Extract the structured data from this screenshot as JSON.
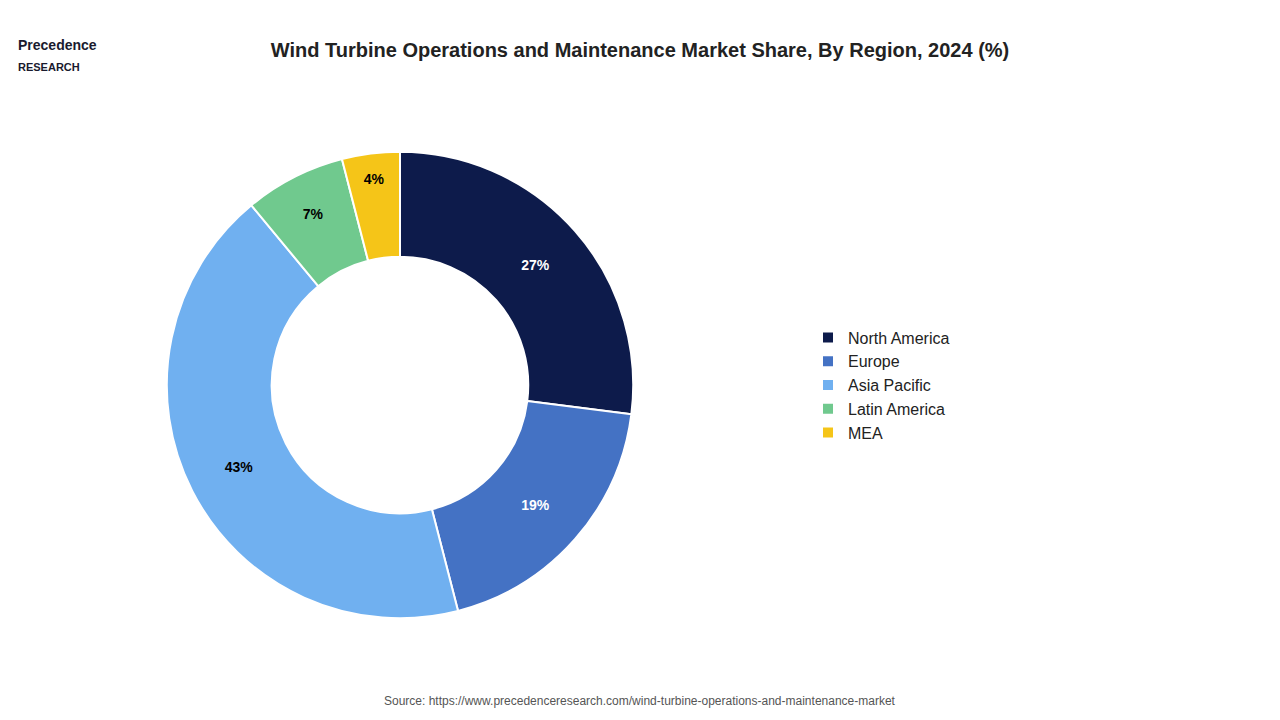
{
  "chart_data": {
    "type": "pie",
    "title": "Wind Turbine Operations and Maintenance Market Share, By Region, 2024 (%)",
    "categories": [
      "North America",
      "Europe",
      "Asia Pacific",
      "Latin America",
      "MEA"
    ],
    "values": [
      27,
      19,
      43,
      7,
      4
    ],
    "value_labels": [
      "27%",
      "19%",
      "43%",
      "7%",
      "4%"
    ],
    "colors": [
      "#0d1b4b",
      "#4472c4",
      "#70b0f0",
      "#70c98e",
      "#f5c518"
    ],
    "data_labels": true,
    "legend": "right",
    "annotations": [
      "Precedence",
      "RESEARCH",
      "Source: https://www.precedenceresearch.com/wind-turbine-operations-and-maintenance-market"
    ]
  }
}
